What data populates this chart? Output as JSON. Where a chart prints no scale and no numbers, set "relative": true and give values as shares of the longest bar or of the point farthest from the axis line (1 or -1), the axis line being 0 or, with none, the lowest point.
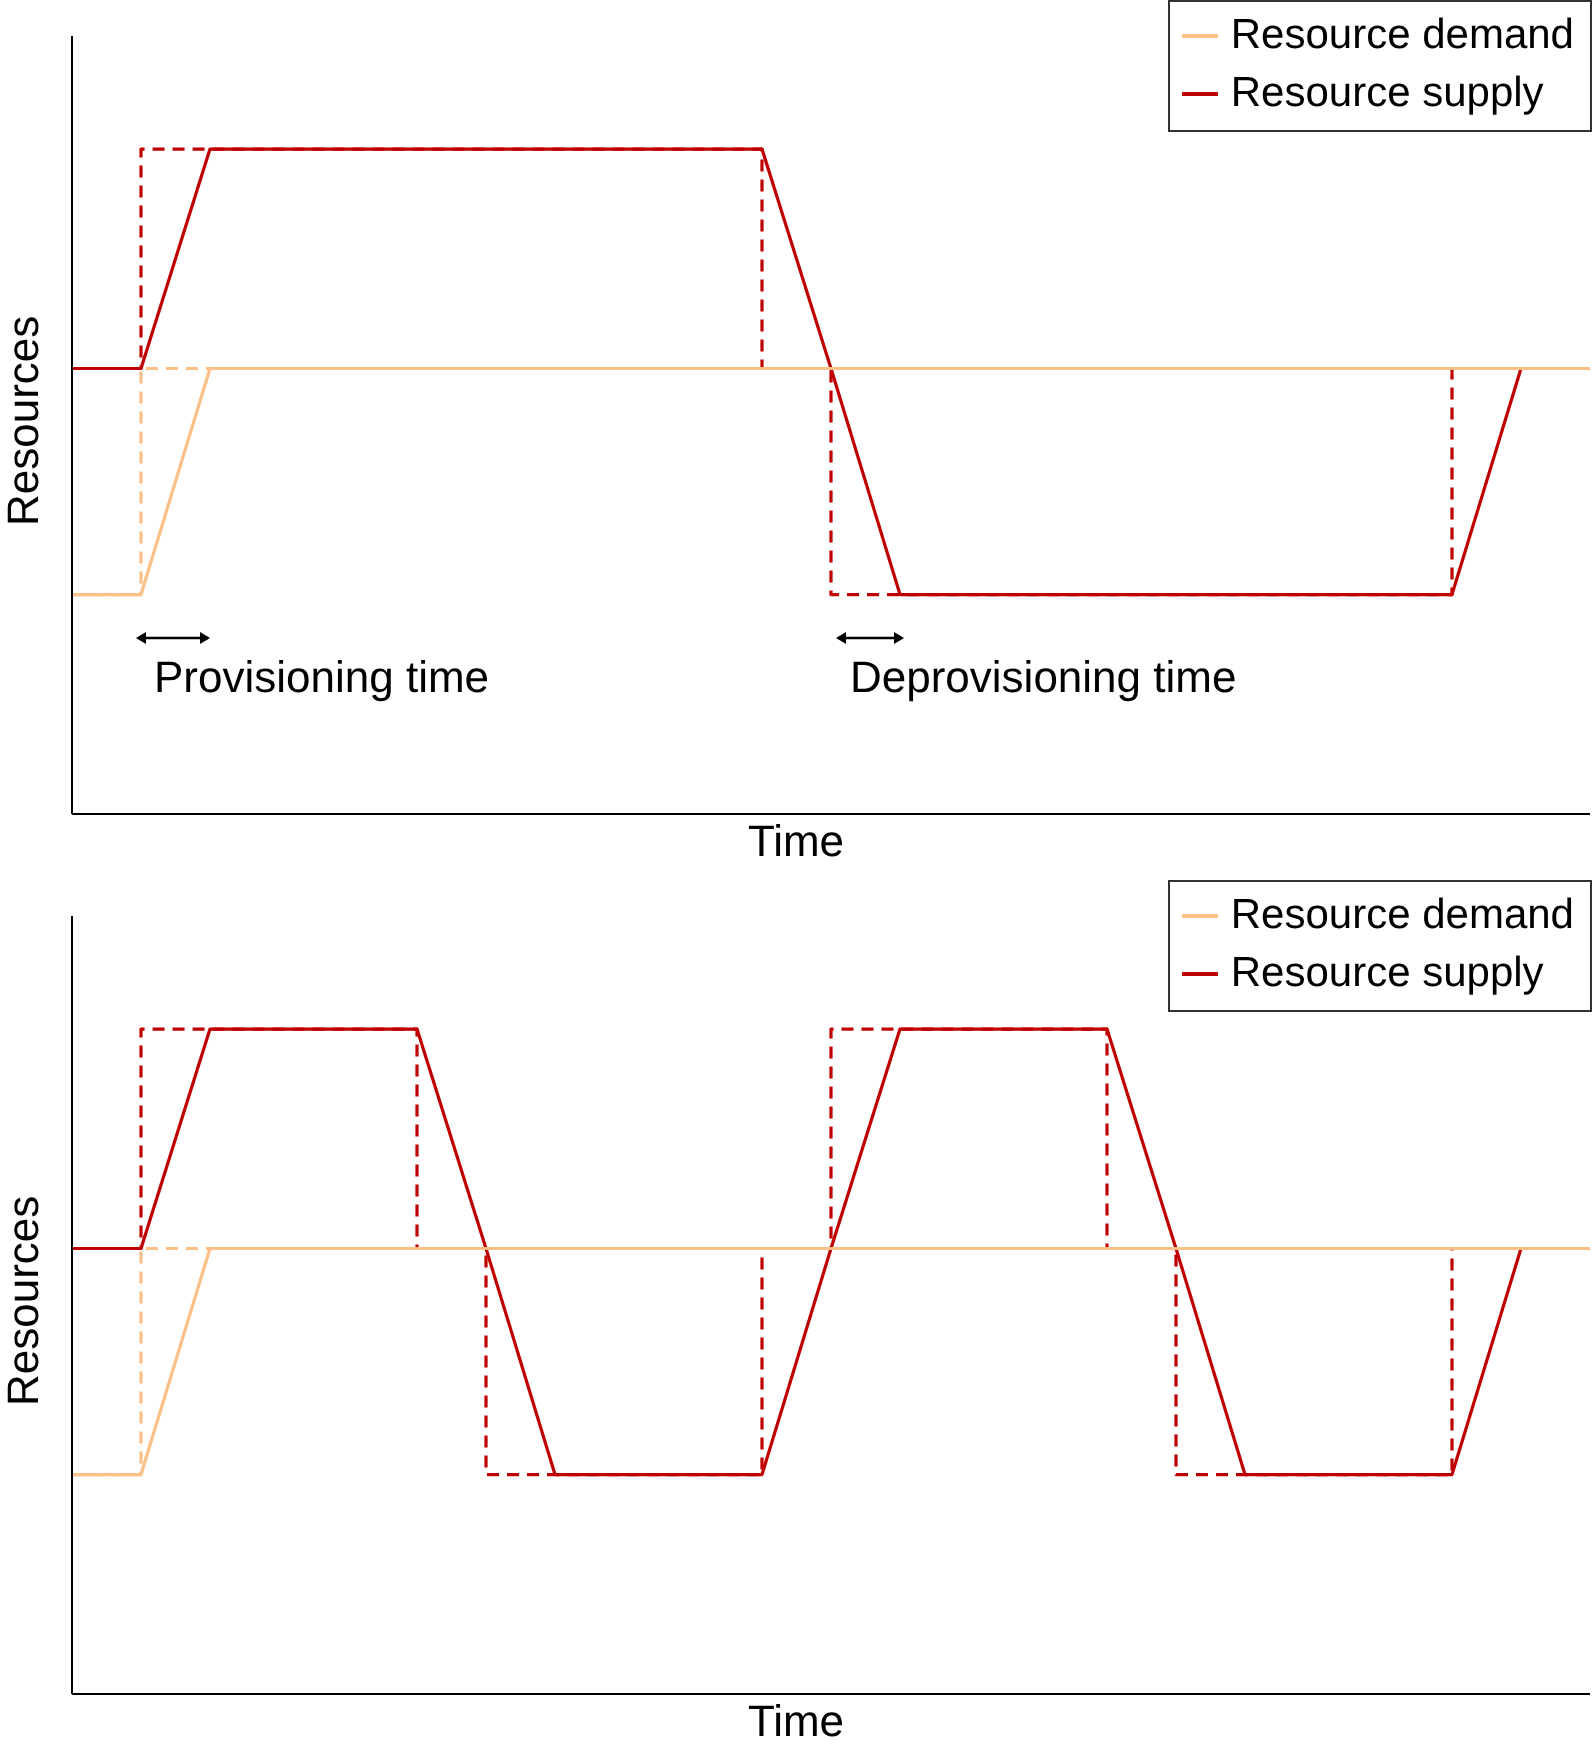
{
  "chart_data": [
    {
      "type": "line",
      "relative": true,
      "xlabel": "Time",
      "ylabel": "Resources",
      "legend": "top right",
      "marker": "none",
      "grid": false,
      "annotations": [
        "Provisioning time",
        "Deprovisioning time"
      ],
      "categories": [
        null,
        null,
        null,
        null,
        null,
        null,
        null,
        null,
        null,
        null,
        null,
        null,
        null,
        null,
        null,
        null,
        null,
        null,
        null,
        null,
        null,
        null,
        null
      ],
      "series": [
        {
          "name": "Resource demand",
          "color": "#fbbf88",
          "line_style": "solid",
          "values": [
            0.33,
            0.33,
            0.67,
            0.67,
            0.67,
            0.67,
            0.67,
            0.67,
            0.67,
            0.67,
            0.67,
            0.67,
            0.67,
            0.67,
            0.67,
            0.67,
            0.67,
            0.67,
            0.67,
            0.67,
            0.67,
            0.67,
            0.67
          ]
        },
        {
          "name": "Resource supply",
          "color": "#c00000",
          "line_style": "solid",
          "values": [
            0.67,
            0.67,
            1,
            1,
            1,
            1,
            1,
            1,
            1,
            1,
            1,
            0.67,
            0.33,
            0.33,
            0.33,
            0.33,
            0.33,
            0.33,
            0.33,
            0.33,
            0.33,
            0.67,
            null
          ]
        },
        {
          "type": "step",
          "color": "#c00000",
          "line_style": "dashed",
          "values": [
            0.67,
            1,
            1,
            1,
            1,
            1,
            1,
            1,
            1,
            1,
            0.67,
            0.33,
            0.33,
            0.33,
            0.33,
            0.33,
            0.33,
            0.33,
            0.33,
            0.33,
            0.67,
            0.67,
            null
          ]
        },
        {
          "type": "step",
          "color": "#fbbf88",
          "line_style": "dashed",
          "values": [
            0.33,
            0.67,
            0.67,
            null,
            null,
            null,
            null,
            null,
            null,
            null,
            null,
            null,
            null,
            null,
            null,
            null,
            null,
            null,
            null,
            null,
            null,
            null,
            null
          ]
        }
      ]
    },
    {
      "type": "line",
      "relative": true,
      "xlabel": "Time",
      "ylabel": "Resources",
      "legend": "top right",
      "marker": "none",
      "grid": false,
      "categories": [
        null,
        null,
        null,
        null,
        null,
        null,
        null,
        null,
        null,
        null,
        null,
        null,
        null,
        null,
        null,
        null,
        null,
        null,
        null,
        null,
        null,
        null,
        null
      ],
      "series": [
        {
          "name": "Resource demand",
          "color": "#fbbf88",
          "line_style": "solid",
          "values": [
            0.33,
            0.33,
            0.67,
            0.67,
            0.67,
            0.67,
            0.67,
            0.67,
            0.67,
            0.67,
            0.67,
            0.67,
            0.67,
            0.67,
            0.67,
            0.67,
            0.67,
            0.67,
            0.67,
            0.67,
            0.67,
            0.67,
            0.67
          ]
        },
        {
          "name": "Resource supply",
          "color": "#c00000",
          "line_style": "solid",
          "values": [
            0.67,
            0.67,
            1,
            1,
            1,
            1,
            0.67,
            0.33,
            0.33,
            0.33,
            0.33,
            0.67,
            1,
            1,
            1,
            1,
            0.67,
            0.33,
            0.33,
            0.33,
            0.33,
            0.67,
            null
          ]
        },
        {
          "type": "step",
          "color": "#c00000",
          "line_style": "dashed",
          "values": [
            0.67,
            1,
            1,
            1,
            1,
            0.67,
            0.33,
            0.33,
            0.33,
            0.33,
            0.67,
            1,
            1,
            1,
            1,
            0.67,
            0.33,
            0.33,
            0.33,
            0.33,
            0.67,
            0.67,
            null
          ]
        },
        {
          "type": "step",
          "color": "#fbbf88",
          "line_style": "dashed",
          "values": [
            0.33,
            0.67,
            0.67,
            null,
            null,
            null,
            null,
            null,
            null,
            null,
            null,
            null,
            null,
            null,
            null,
            null,
            null,
            null,
            null,
            null,
            null,
            null,
            null
          ]
        }
      ]
    }
  ]
}
